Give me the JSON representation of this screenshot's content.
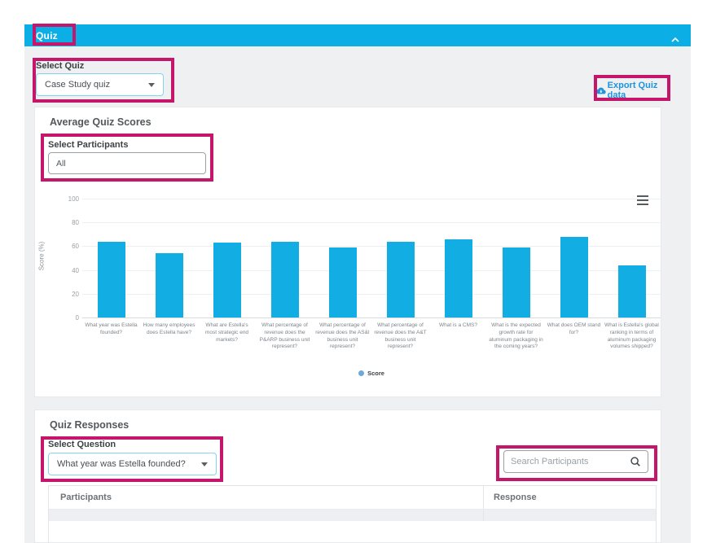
{
  "header": {
    "title": "Quiz",
    "collapse_icon": "chevron-up"
  },
  "quiz_selector": {
    "label": "Select Quiz",
    "value": "Case Study quiz"
  },
  "export": {
    "label": "Export Quiz data",
    "icon": "cloud-download-icon"
  },
  "scores_card": {
    "title": "Average Quiz Scores",
    "participants_selector": {
      "label": "Select Participants",
      "value": "All"
    }
  },
  "chart_data": {
    "type": "bar",
    "title": "",
    "ylabel": "Score (%)",
    "ylim": [
      0,
      100
    ],
    "yticks": [
      0,
      20,
      40,
      60,
      80,
      100
    ],
    "grid": true,
    "legend_position": "bottom",
    "series_name": "Score",
    "bar_color": "#12ade2",
    "legend_dot_color": "#6fa9dc",
    "categories": [
      "What year was Estella founded?",
      "How many employees does Estella have?",
      "What are Estella's most strategic end markets?",
      "What percentage of revenue does the P&ARP business unit represent?",
      "What percentage of revenue does the AS&I business unit represent?",
      "What percentage of revenue does the A&T business unit represent?",
      "What is a CMS?",
      "What is the expected growth rate for aluminum packaging in the coming years?",
      "What does OEM stand for?",
      "What is Estella's global ranking in terms of aluminum packaging volumes shipped?"
    ],
    "values": [
      64,
      54,
      63,
      64,
      59,
      64,
      66,
      59,
      68,
      44
    ]
  },
  "responses_card": {
    "title": "Quiz Responses",
    "question_selector": {
      "label": "Select Question",
      "value": "What year was Estella founded?"
    },
    "search": {
      "placeholder": "Search Participants",
      "icon": "search-icon"
    },
    "table": {
      "columns": [
        "Participants",
        "Response"
      ],
      "rows": []
    }
  },
  "colors": {
    "header_cyan": "#0caee6",
    "annotation_pink": "#c4176b",
    "export_link_blue": "#2093dd",
    "bar_cyan": "#12ade2",
    "legend_dot_blue": "#6fa9dc",
    "panel_bg": "#eef0f2"
  }
}
